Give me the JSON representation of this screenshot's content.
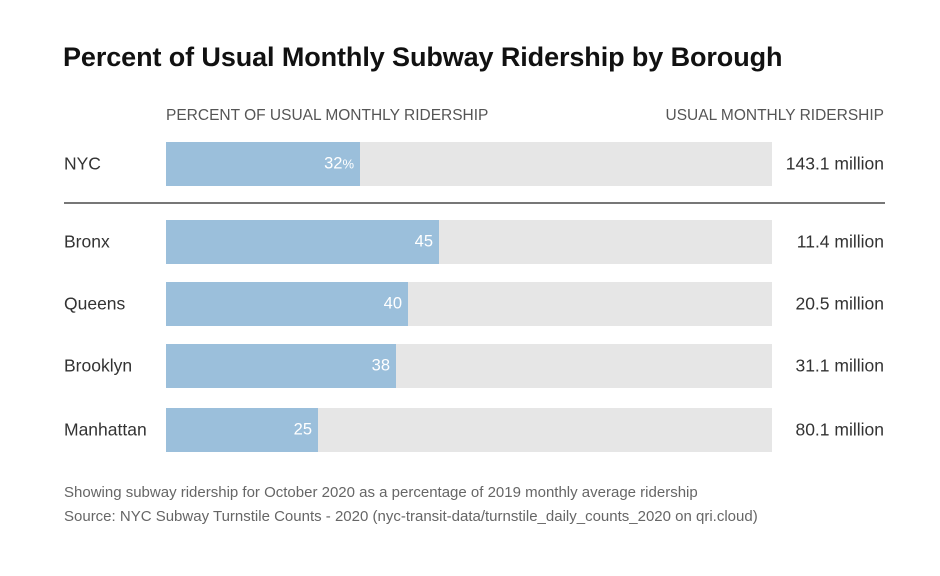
{
  "chart_data": {
    "type": "bar",
    "title": "Percent of Usual Monthly Subway Ridership by Borough",
    "column_headers": {
      "left": "PERCENT OF USUAL MONTHLY RIDERSHIP",
      "right": "USUAL MONTHLY RIDERSHIP"
    },
    "xlim": [
      0,
      100
    ],
    "rows": [
      {
        "category": "NYC",
        "value": 32,
        "label": "32",
        "unit": "%",
        "usual_ridership": "143.1 million"
      },
      {
        "category": "Bronx",
        "value": 45,
        "label": "45",
        "unit": "",
        "usual_ridership": "11.4 million"
      },
      {
        "category": "Queens",
        "value": 40,
        "label": "40",
        "unit": "",
        "usual_ridership": "20.5 million"
      },
      {
        "category": "Brooklyn",
        "value": 38,
        "label": "38",
        "unit": "",
        "usual_ridership": "31.1 million"
      },
      {
        "category": "Manhattan",
        "value": 25,
        "label": "25",
        "unit": "",
        "usual_ridership": "80.1 million"
      }
    ],
    "footnotes": [
      "Showing subway ridership for October 2020 as a percentage of 2019 monthly average ridership",
      "Source: NYC Subway Turnstile Counts - 2020 (nyc-transit-data/turnstile_daily_counts_2020 on qri.cloud)"
    ],
    "colors": {
      "bar": "#9bbfdb",
      "track": "#e6e6e6",
      "divider": "#777777"
    }
  }
}
